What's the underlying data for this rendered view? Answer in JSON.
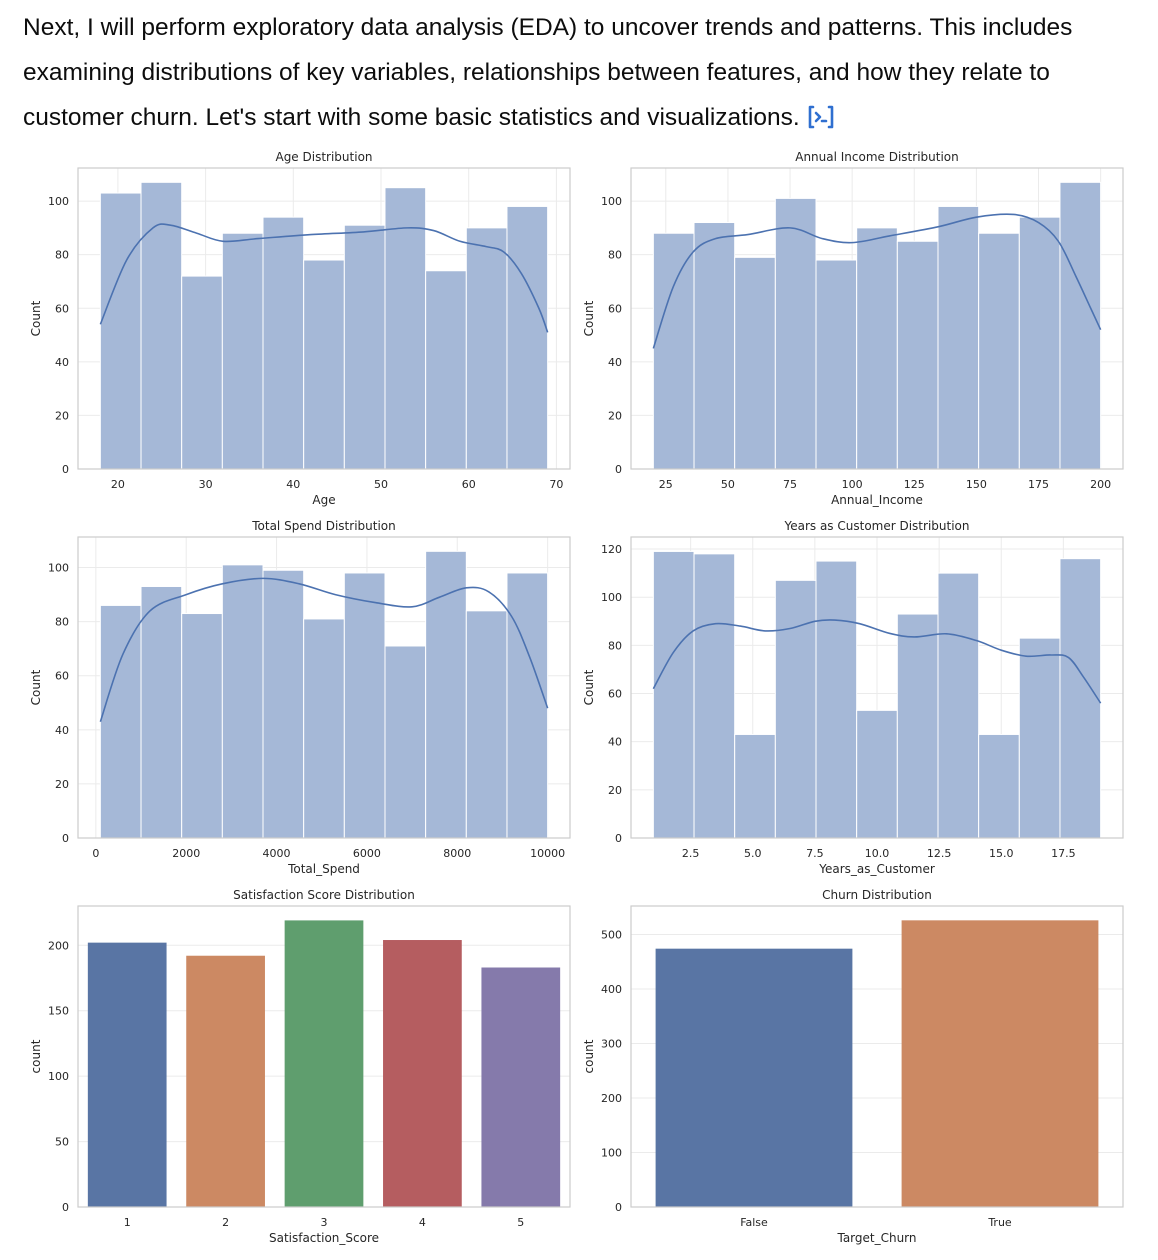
{
  "message": {
    "text": "Next, I will perform exploratory data analysis (EDA) to uncover trends and patterns. This includes examining distributions of key variables, relationships between features, and how they relate to customer churn. Let's start with some basic statistics and visualizations.",
    "icon": "code-interpreter-icon",
    "accent": "#2f6fd0"
  },
  "colors": {
    "hist_fill": "#a5b8d7",
    "kde_line": "#4c72b0",
    "grid": "#ebebeb",
    "frame": "#cccccc"
  },
  "chart_data": [
    {
      "type": "bar",
      "subtype": "histogram",
      "title": "Age Distribution",
      "xlabel": "Age",
      "ylabel": "Count",
      "range": [
        18,
        69
      ],
      "values": [
        103,
        107,
        72,
        88,
        94,
        78,
        91,
        105,
        74,
        90,
        98
      ],
      "xticks": [
        20,
        30,
        40,
        50,
        60,
        70
      ],
      "yticks": [
        0,
        20,
        40,
        60,
        80,
        100
      ],
      "ylim": [
        0,
        112.35
      ],
      "grid": true,
      "kde": [
        [
          18,
          54
        ],
        [
          21,
          78
        ],
        [
          24,
          90
        ],
        [
          26,
          91
        ],
        [
          29,
          88
        ],
        [
          32,
          85
        ],
        [
          36,
          86
        ],
        [
          42,
          87.5
        ],
        [
          48,
          88.5
        ],
        [
          53,
          90
        ],
        [
          56,
          89
        ],
        [
          59,
          85
        ],
        [
          62,
          83
        ],
        [
          64,
          81
        ],
        [
          66,
          73
        ],
        [
          68,
          60
        ],
        [
          69,
          51
        ]
      ]
    },
    {
      "type": "bar",
      "subtype": "histogram",
      "title": "Annual Income Distribution",
      "xlabel": "Annual_Income",
      "ylabel": "Count",
      "range": [
        20,
        200
      ],
      "values": [
        88,
        92,
        79,
        101,
        78,
        90,
        85,
        98,
        88,
        94,
        107
      ],
      "xticks": [
        25,
        50,
        75,
        100,
        125,
        150,
        175,
        200
      ],
      "yticks": [
        0,
        20,
        40,
        60,
        80,
        100
      ],
      "ylim": [
        0,
        112.35
      ],
      "grid": true,
      "kde": [
        [
          20,
          45
        ],
        [
          28,
          68
        ],
        [
          36,
          81
        ],
        [
          45,
          86
        ],
        [
          58,
          87.5
        ],
        [
          75,
          90
        ],
        [
          88,
          86
        ],
        [
          100,
          84.5
        ],
        [
          115,
          87
        ],
        [
          135,
          90.5
        ],
        [
          150,
          94
        ],
        [
          165,
          95
        ],
        [
          175,
          92
        ],
        [
          183,
          85
        ],
        [
          190,
          72
        ],
        [
          196,
          60
        ],
        [
          200,
          52
        ]
      ]
    },
    {
      "type": "bar",
      "subtype": "histogram",
      "title": "Total Spend Distribution",
      "xlabel": "Total_Spend",
      "ylabel": "Count",
      "range": [
        100,
        10000
      ],
      "values": [
        86,
        93,
        83,
        101,
        99,
        81,
        98,
        71,
        106,
        84,
        98
      ],
      "xticks": [
        0,
        2000,
        4000,
        6000,
        8000,
        10000
      ],
      "yticks": [
        0,
        20,
        40,
        60,
        80,
        100
      ],
      "ylim": [
        0,
        111.3
      ],
      "grid": true,
      "kde": [
        [
          100,
          43
        ],
        [
          600,
          68
        ],
        [
          1200,
          84
        ],
        [
          2000,
          90
        ],
        [
          2800,
          94
        ],
        [
          3700,
          96
        ],
        [
          4500,
          94
        ],
        [
          5300,
          90
        ],
        [
          6200,
          87
        ],
        [
          7000,
          85.5
        ],
        [
          7600,
          89
        ],
        [
          8200,
          92.5
        ],
        [
          8700,
          91
        ],
        [
          9200,
          82
        ],
        [
          9600,
          67
        ],
        [
          10000,
          48
        ]
      ]
    },
    {
      "type": "bar",
      "subtype": "histogram",
      "title": "Years as Customer Distribution",
      "xlabel": "Years_as_Customer",
      "ylabel": "Count",
      "range": [
        1,
        19
      ],
      "values": [
        119,
        118,
        43,
        107,
        115,
        53,
        93,
        110,
        43,
        83,
        116
      ],
      "xticks": [
        2.5,
        5.0,
        7.5,
        10.0,
        12.5,
        15.0,
        17.5
      ],
      "yticks": [
        0,
        20,
        40,
        60,
        80,
        100,
        120
      ],
      "ylim": [
        0,
        125
      ],
      "grid": true,
      "kde": [
        [
          1,
          62
        ],
        [
          1.8,
          77
        ],
        [
          2.6,
          86
        ],
        [
          3.5,
          89
        ],
        [
          4.5,
          88
        ],
        [
          5.5,
          86
        ],
        [
          6.5,
          87
        ],
        [
          7.5,
          90
        ],
        [
          8.3,
          90.5
        ],
        [
          9.3,
          89
        ],
        [
          10.5,
          85
        ],
        [
          11.5,
          83.5
        ],
        [
          12.8,
          84.8
        ],
        [
          14,
          82
        ],
        [
          15,
          78
        ],
        [
          16,
          75.5
        ],
        [
          17,
          76
        ],
        [
          17.7,
          75
        ],
        [
          18.3,
          67
        ],
        [
          19,
          56
        ]
      ]
    },
    {
      "type": "bar",
      "title": "Satisfaction Score Distribution",
      "xlabel": "Satisfaction_Score",
      "ylabel": "count",
      "categories": [
        "1",
        "2",
        "3",
        "4",
        "5"
      ],
      "values": [
        202,
        192,
        219,
        204,
        183
      ],
      "colors": [
        "#5975a4",
        "#cc8963",
        "#5f9e6e",
        "#b55d60",
        "#857aab"
      ],
      "yticks": [
        0,
        50,
        100,
        150,
        200
      ],
      "ylim": [
        0,
        230
      ],
      "grid": true
    },
    {
      "type": "bar",
      "title": "Churn Distribution",
      "xlabel": "Target_Churn",
      "ylabel": "count",
      "categories": [
        "False",
        "True"
      ],
      "values": [
        474,
        526
      ],
      "colors": [
        "#5975a4",
        "#cc8963"
      ],
      "yticks": [
        0,
        100,
        200,
        300,
        400,
        500
      ],
      "ylim": [
        0,
        552.3
      ],
      "grid": true
    }
  ]
}
